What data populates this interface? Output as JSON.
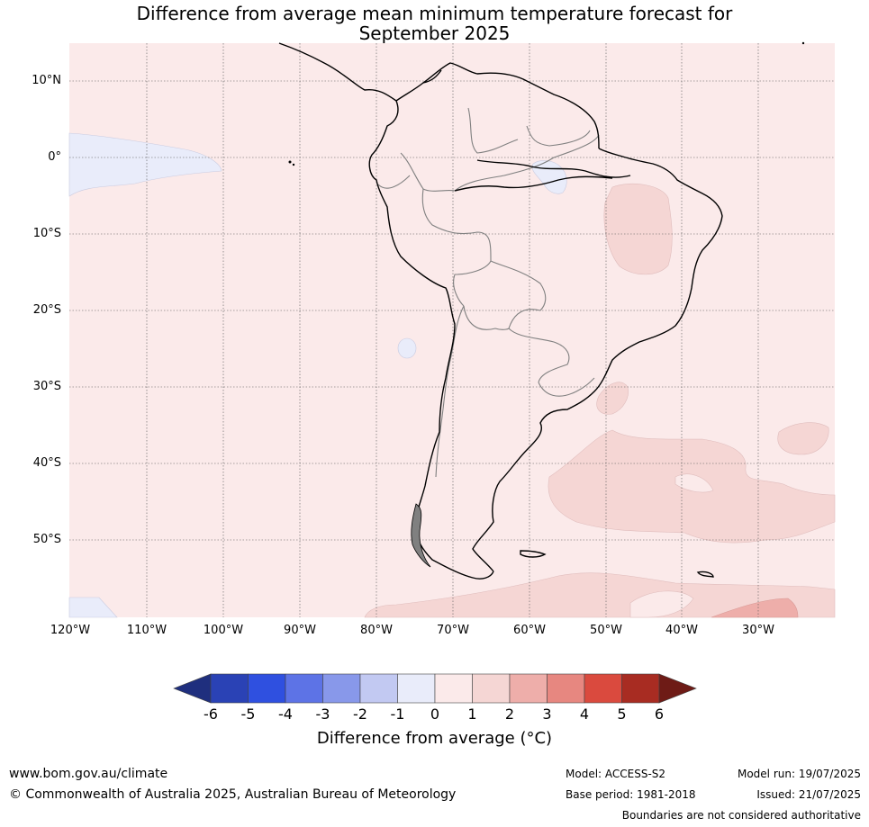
{
  "title_line1": "Difference from average mean minimum temperature forecast for",
  "title_line2": "September 2025",
  "map": {
    "region": "South America",
    "background_color": "#fbeaea",
    "lat_labels": [
      "10°N",
      "0°",
      "10°S",
      "20°S",
      "30°S",
      "40°S",
      "50°S"
    ],
    "lon_labels": [
      "120°W",
      "110°W",
      "100°W",
      "90°W",
      "80°W",
      "70°W",
      "60°W",
      "50°W",
      "40°W",
      "30°W"
    ]
  },
  "colorbar": {
    "ticks": [
      "-6",
      "-5",
      "-4",
      "-3",
      "-2",
      "-1",
      "0",
      "1",
      "2",
      "3",
      "4",
      "5",
      "6"
    ],
    "colors": [
      "#1f2f7e",
      "#2a42b5",
      "#2f50e0",
      "#5d73e6",
      "#8898ea",
      "#c2c9f2",
      "#e9ecfa",
      "#fbeaea",
      "#f5d6d4",
      "#eeaeaa",
      "#e78780",
      "#da4a3e",
      "#a82c22",
      "#6e1b16"
    ],
    "label": "Difference from average (°C)"
  },
  "footer": {
    "website": "www.bom.gov.au/climate",
    "copyright": "© Commonwealth of Australia 2025, Australian Bureau of Meteorology",
    "model": "Model: ACCESS-S2",
    "base_period": "Base period: 1981-2018",
    "model_run": "Model run: 19/07/2025",
    "issued": "Issued: 21/07/2025",
    "disclaimer": "Boundaries are not considered authoritative"
  }
}
